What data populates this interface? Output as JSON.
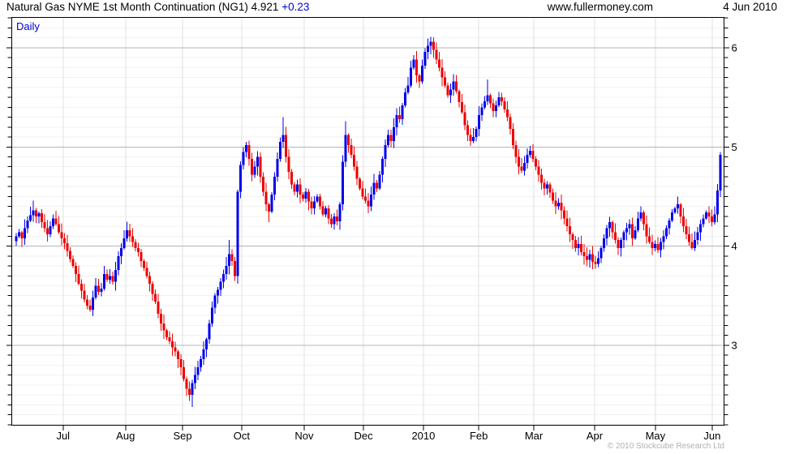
{
  "header": {
    "title": "Natural Gas NYME 1st Month Continuation (NG1)",
    "price": "4.921",
    "change": "+0.23",
    "site": "www.fullermoney.com",
    "date": "4 Jun 2010"
  },
  "interval_label": "Daily",
  "copyright": "© 2010 Stockcube Research Ltd",
  "colors": {
    "up": "#0000ee",
    "down": "#ee0000",
    "grid_minor": "#f1f1f1",
    "grid_month": "#e0e0e0",
    "grid_major": "#b4b4b4",
    "frame": "#000000",
    "tick": "#000000",
    "label": "#000000",
    "change_text": "#0000dd",
    "daily_text": "#0000cc",
    "copyright_text": "#b0b0b0"
  },
  "chart_data": {
    "type": "candlestick",
    "title": "Natural Gas NYME 1st Month Continuation (NG1)",
    "interval": "Daily",
    "last_price": 4.921,
    "change": 0.23,
    "ylim": [
      2.19,
      6.31
    ],
    "y_major_ticks": [
      3,
      4,
      5,
      6
    ],
    "y_minor_step": 0.1,
    "grid": "on",
    "x_ticks": [
      {
        "label": "Jul",
        "i": 16.5
      },
      {
        "label": "Aug",
        "i": 38.5
      },
      {
        "label": "Sep",
        "i": 58.6
      },
      {
        "label": "Oct",
        "i": 79.4
      },
      {
        "label": "Nov",
        "i": 101.4
      },
      {
        "label": "Dec",
        "i": 122.3
      },
      {
        "label": "2010",
        "i": 143.4
      },
      {
        "label": "Feb",
        "i": 162.9
      },
      {
        "label": "Mar",
        "i": 182.3
      },
      {
        "label": "Apr",
        "i": 203.7
      },
      {
        "label": "May",
        "i": 225.1
      },
      {
        "label": "Jun",
        "i": 245.1
      }
    ],
    "first_open": 4.05,
    "closes": [
      4.1,
      4.14,
      4.08,
      4.18,
      4.26,
      4.31,
      4.36,
      4.3,
      4.33,
      4.24,
      4.18,
      4.12,
      4.2,
      4.28,
      4.22,
      4.14,
      4.08,
      4.03,
      3.95,
      3.87,
      3.8,
      3.72,
      3.62,
      3.55,
      3.46,
      3.4,
      3.36,
      3.48,
      3.6,
      3.54,
      3.57,
      3.72,
      3.66,
      3.7,
      3.64,
      3.76,
      3.9,
      3.98,
      4.08,
      4.16,
      4.1,
      4.04,
      3.98,
      3.94,
      3.85,
      3.78,
      3.7,
      3.62,
      3.52,
      3.44,
      3.32,
      3.22,
      3.15,
      3.08,
      3.04,
      2.98,
      2.94,
      2.86,
      2.78,
      2.66,
      2.56,
      2.5,
      2.62,
      2.7,
      2.78,
      2.86,
      2.96,
      3.06,
      3.22,
      3.38,
      3.5,
      3.56,
      3.64,
      3.72,
      3.8,
      3.92,
      3.85,
      3.7,
      4.55,
      4.82,
      4.95,
      5.02,
      4.88,
      4.72,
      4.8,
      4.9,
      4.7,
      4.55,
      4.42,
      4.35,
      4.52,
      4.7,
      4.88,
      5.05,
      5.12,
      4.9,
      4.75,
      4.62,
      4.55,
      4.62,
      4.52,
      4.48,
      4.55,
      4.45,
      4.38,
      4.45,
      4.5,
      4.4,
      4.32,
      4.38,
      4.28,
      4.22,
      4.3,
      4.25,
      4.42,
      4.85,
      5.12,
      5.02,
      4.92,
      4.8,
      4.68,
      4.58,
      4.5,
      4.46,
      4.4,
      4.52,
      4.64,
      4.58,
      4.72,
      4.88,
      5.02,
      5.12,
      5.06,
      5.2,
      5.32,
      5.28,
      5.42,
      5.55,
      5.62,
      5.8,
      5.88,
      5.72,
      5.66,
      5.82,
      5.96,
      6.02,
      6.06,
      5.98,
      5.88,
      5.8,
      5.7,
      5.62,
      5.52,
      5.58,
      5.66,
      5.56,
      5.45,
      5.35,
      5.22,
      5.12,
      5.06,
      5.1,
      5.18,
      5.32,
      5.4,
      5.46,
      5.52,
      5.44,
      5.36,
      5.42,
      5.5,
      5.46,
      5.38,
      5.3,
      5.18,
      5.02,
      4.9,
      4.8,
      4.76,
      4.84,
      4.92,
      4.96,
      4.88,
      4.8,
      4.72,
      4.64,
      4.58,
      4.62,
      4.54,
      4.46,
      4.4,
      4.44,
      4.36,
      4.28,
      4.2,
      4.12,
      4.06,
      3.98,
      4.02,
      3.94,
      3.9,
      3.86,
      3.92,
      3.84,
      3.82,
      3.88,
      3.98,
      4.08,
      4.18,
      4.24,
      4.14,
      4.06,
      3.98,
      4.06,
      4.14,
      4.18,
      4.22,
      4.08,
      4.16,
      4.28,
      4.34,
      4.22,
      4.1,
      4.04,
      3.98,
      4.02,
      3.96,
      4.04,
      4.1,
      4.18,
      4.26,
      4.34,
      4.38,
      4.42,
      4.3,
      4.2,
      4.12,
      4.04,
      3.98,
      4.06,
      4.14,
      4.22,
      4.28,
      4.34,
      4.3,
      4.24,
      4.32,
      4.56,
      4.92
    ],
    "wick_overrides": {
      "6": {
        "h": 4.46
      },
      "26": {
        "l": 3.34
      },
      "61": {
        "l": 2.44
      },
      "62": {
        "l": 2.38
      },
      "75": {
        "h": 4.06
      },
      "89": {
        "l": 4.24
      },
      "94": {
        "h": 5.3
      },
      "116": {
        "h": 5.26
      },
      "124": {
        "l": 4.33
      },
      "146": {
        "h": 6.11
      },
      "160": {
        "l": 5.01
      },
      "166": {
        "h": 5.68
      },
      "204": {
        "l": 3.77
      },
      "220": {
        "h": 4.4
      },
      "233": {
        "h": 4.5
      },
      "248": {
        "h": 4.95
      }
    }
  }
}
